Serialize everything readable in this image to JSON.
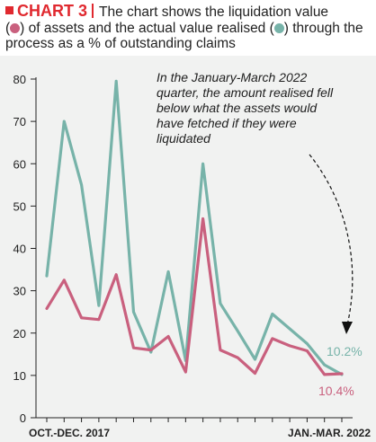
{
  "header": {
    "label": "CHART 3",
    "line1": "The chart shows the liquidation value",
    "line2a": "(",
    "line2b": ") of assets and the actual value realised (",
    "line2c": ") through the",
    "line3": "process as a % of outstanding claims"
  },
  "annotation": "In the January-March 2022 quarter, the amount realised fell below what the assets would have fetched if they were liquidated",
  "colors": {
    "liquidation": "#c9607e",
    "realised": "#77b3a9",
    "brand_red": "#e0292f",
    "panel_bg": "#f1f2f1"
  },
  "chart_data": {
    "type": "line",
    "title": "",
    "xlabel": "",
    "ylabel": "",
    "ylim": [
      0,
      80
    ],
    "yticks": [
      0,
      10,
      20,
      30,
      40,
      50,
      60,
      70,
      80
    ],
    "grid": false,
    "x_tick_labels": [
      "OCT.-DEC. 2017",
      "JAN.-MAR. 2022"
    ],
    "n_points": 18,
    "series": [
      {
        "key": "realised",
        "values": [
          33.5,
          70,
          55,
          26.5,
          79.5,
          25,
          15.5,
          34.5,
          13.5,
          60,
          27,
          20.5,
          13.8,
          24.5,
          21,
          17.5,
          12.5,
          10.2
        ],
        "end_label": "10.2%"
      },
      {
        "key": "liquidation",
        "values": [
          25.8,
          32.5,
          23.6,
          23.2,
          33.8,
          16.5,
          16,
          19.2,
          10.8,
          47,
          16,
          14.2,
          10.5,
          18.7,
          17,
          15.8,
          10.2,
          10.4
        ],
        "end_label": "10.4%"
      }
    ]
  }
}
